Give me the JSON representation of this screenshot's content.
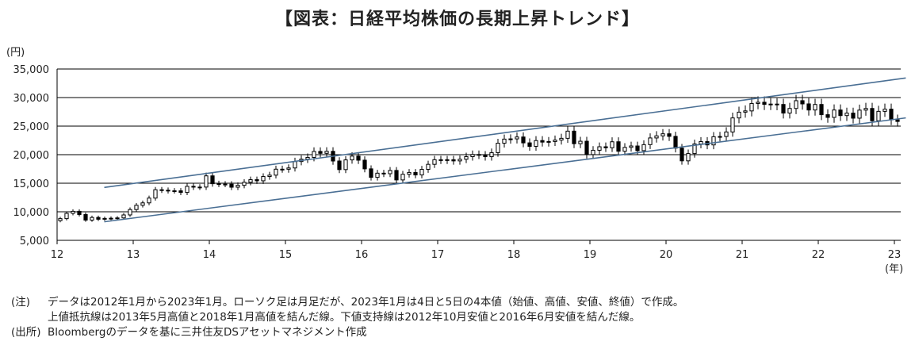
{
  "title": "【図表：日経平均株価の長期上昇トレンド】",
  "y_unit": "(円)",
  "x_unit": "(年)",
  "notes": {
    "label1": "(注)",
    "line1": "データは2012年1月から2023年1月。ローソク足は月足だが、2023年1月は4日と5日の4本値（始値、高値、安値、終値）で作成。",
    "line2": "上値抵抗線は2013年5月高値と2018年1月高値を結んだ線。下値支持線は2012年10月安値と2016年6月安値を結んだ線。",
    "label2": "(出所)",
    "line3": "Bloombergのデータを基に三井住友DSアセットマネジメント作成"
  },
  "colors": {
    "candle": "#000000",
    "trend": "#4a6f94",
    "grid": "#000000"
  },
  "chart_data": {
    "type": "candlestick",
    "y_ticks": [
      "5,000",
      "10,000",
      "15,000",
      "20,000",
      "25,000",
      "30,000",
      "35,000"
    ],
    "x_ticks": [
      "12",
      "13",
      "14",
      "15",
      "16",
      "17",
      "18",
      "19",
      "20",
      "21",
      "22",
      "23"
    ],
    "ylim": [
      5000,
      35000
    ],
    "xlim": [
      2012.0,
      2023.0
    ],
    "closes": [
      8802,
      9723,
      10084,
      9521,
      8543,
      9007,
      8695,
      8840,
      8870,
      8928,
      9446,
      10395,
      11139,
      11559,
      12398,
      13861,
      13775,
      13677,
      13668,
      13389,
      14456,
      14328,
      14327,
      16291,
      14915,
      14841,
      14828,
      14304,
      14632,
      15162,
      15621,
      15425,
      16174,
      16414,
      17460,
      17451,
      17674,
      18798,
      19207,
      19520,
      20563,
      20236,
      20585,
      18890,
      17388,
      19083,
      19747,
      19034,
      17518,
      16027,
      16759,
      16666,
      17235,
      15576,
      16569,
      16887,
      16450,
      17425,
      18308,
      19114,
      19041,
      19119,
      18909,
      19197,
      19651,
      20033,
      19925,
      19646,
      20356,
      22012,
      22725,
      22765,
      23098,
      22068,
      21454,
      22468,
      22202,
      22305,
      22554,
      22865,
      24120,
      21920,
      22351,
      20015,
      20773,
      21385,
      21206,
      22259,
      20601,
      21276,
      21522,
      20704,
      21756,
      22927,
      23294,
      23657,
      23205,
      21143,
      18917,
      20194,
      21878,
      22288,
      21710,
      23140,
      23185,
      23977,
      26433,
      27444,
      27663,
      28966,
      29179,
      28813,
      28860,
      28792,
      27284,
      28090,
      29453,
      28892,
      27822,
      28792,
      27002,
      26527,
      27821,
      26848,
      27280,
      26393,
      27802,
      28092,
      25938,
      27587,
      27969,
      26095,
      25820
    ],
    "resistance_line": {
      "from": [
        2013.37,
        15627
      ],
      "to": [
        2018.04,
        24129
      ]
    },
    "support_line": {
      "from": [
        2012.79,
        8540
      ],
      "to": [
        2016.45,
        14864
      ]
    }
  }
}
